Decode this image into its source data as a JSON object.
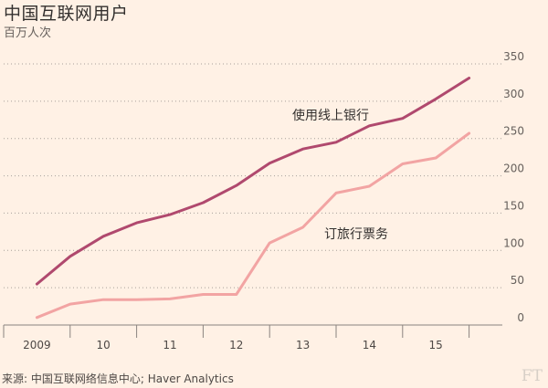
{
  "header": {
    "title": "中国互联网用户",
    "subtitle": "百万人次"
  },
  "footer": {
    "source": "来源: 中国互联网络信息中心; Haver Analytics",
    "logo": "FT"
  },
  "chart_data": {
    "type": "line",
    "title": "中国互联网用户",
    "subtitle": "百万人次",
    "xlabel": "",
    "ylabel": "",
    "x": [
      2009.0,
      2009.5,
      2010.0,
      2010.5,
      2011.0,
      2011.5,
      2012.0,
      2012.5,
      2013.0,
      2013.5,
      2014.0,
      2014.5,
      2015.0,
      2015.5
    ],
    "xticks": [
      {
        "value": 2009,
        "label": "2009"
      },
      {
        "value": 2010,
        "label": "10"
      },
      {
        "value": 2011,
        "label": "11"
      },
      {
        "value": 2012,
        "label": "12"
      },
      {
        "value": 2013,
        "label": "13"
      },
      {
        "value": 2014,
        "label": "14"
      },
      {
        "value": 2015,
        "label": "15"
      }
    ],
    "xlim": [
      2008.5,
      2016.0
    ],
    "ylim": [
      0,
      350
    ],
    "yticks": [
      0,
      50,
      100,
      150,
      200,
      250,
      300,
      350
    ],
    "grid": true,
    "series": [
      {
        "name": "使用线上银行",
        "color": "#b0496e",
        "values": [
          55,
          92,
          119,
          137,
          148,
          164,
          187,
          217,
          236,
          245,
          267,
          277,
          303,
          331
        ]
      },
      {
        "name": "订旅行票务",
        "color": "#f2a4a3",
        "values": [
          10,
          28,
          34,
          34,
          35,
          41,
          41,
          110,
          131,
          177,
          186,
          216,
          224,
          257
        ]
      }
    ]
  }
}
